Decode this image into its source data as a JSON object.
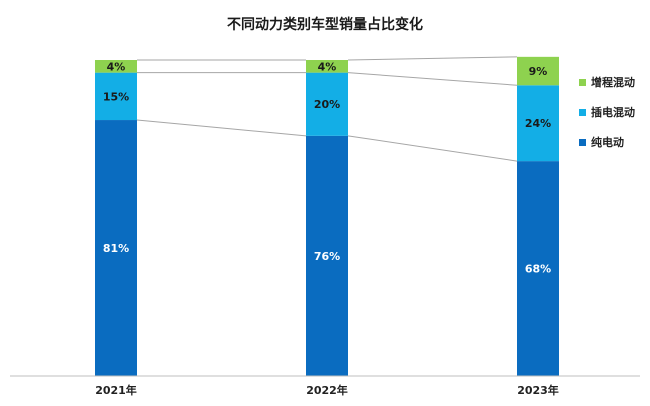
{
  "chart_data": {
    "type": "bar",
    "stacked": true,
    "title": "不同动力类别车型销量占比变化",
    "categories": [
      "2021年",
      "2022年",
      "2023年"
    ],
    "series": [
      {
        "name": "纯电动",
        "values": [
          81,
          76,
          68
        ],
        "labels": [
          "81%",
          "76%",
          "68%"
        ],
        "color": "#0a6cc0"
      },
      {
        "name": "插电混动",
        "values": [
          15,
          20,
          24
        ],
        "labels": [
          "15%",
          "20%",
          "24%"
        ],
        "color": "#13aee6"
      },
      {
        "name": "增程混动",
        "values": [
          4,
          4,
          9
        ],
        "labels": [
          "4%",
          "4%",
          "9%"
        ],
        "color": "#8ed24f"
      }
    ],
    "legend_order": [
      "增程混动",
      "插电混动",
      "纯电动"
    ],
    "ylim": [
      0,
      100
    ],
    "grid": false,
    "legend_position": "right",
    "connector_lines": true
  }
}
